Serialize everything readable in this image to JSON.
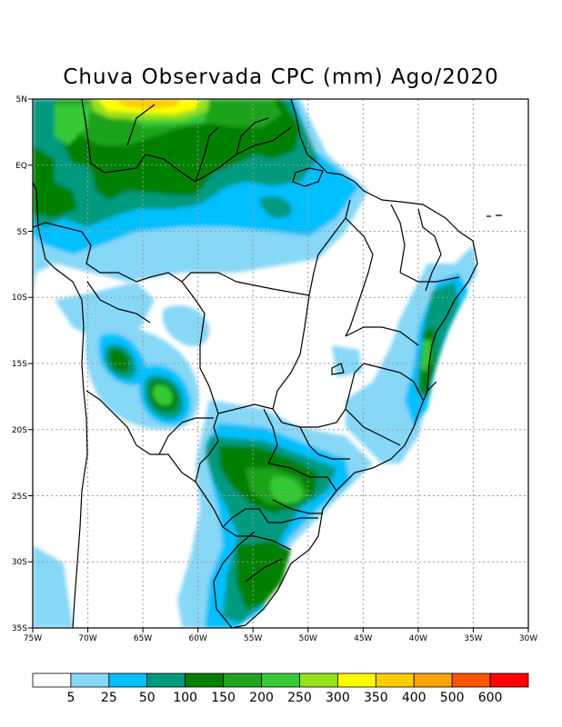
{
  "title": "Chuva Observada CPC (mm) Ago/2020",
  "x_ticks": [
    "75W",
    "70W",
    "65W",
    "60W",
    "55W",
    "50W",
    "45W",
    "40W",
    "35W",
    "30W"
  ],
  "y_ticks": [
    "5N",
    "EQ",
    "5S",
    "10S",
    "15S",
    "20S",
    "25S",
    "30S",
    "35S"
  ],
  "colorbar": {
    "labels": [
      "5",
      "25",
      "50",
      "100",
      "150",
      "200",
      "250",
      "300",
      "350",
      "400",
      "500",
      "600"
    ],
    "colors": [
      "#ffffff",
      "#87d7f7",
      "#00bfff",
      "#009a7e",
      "#008000",
      "#1fa31f",
      "#35c935",
      "#96e01c",
      "#ffff00",
      "#ffcc00",
      "#ffa500",
      "#ff5500",
      "#ff0000"
    ]
  },
  "map_extent": {
    "lon": [
      -75,
      -30
    ],
    "lat": [
      -35,
      5
    ]
  }
}
